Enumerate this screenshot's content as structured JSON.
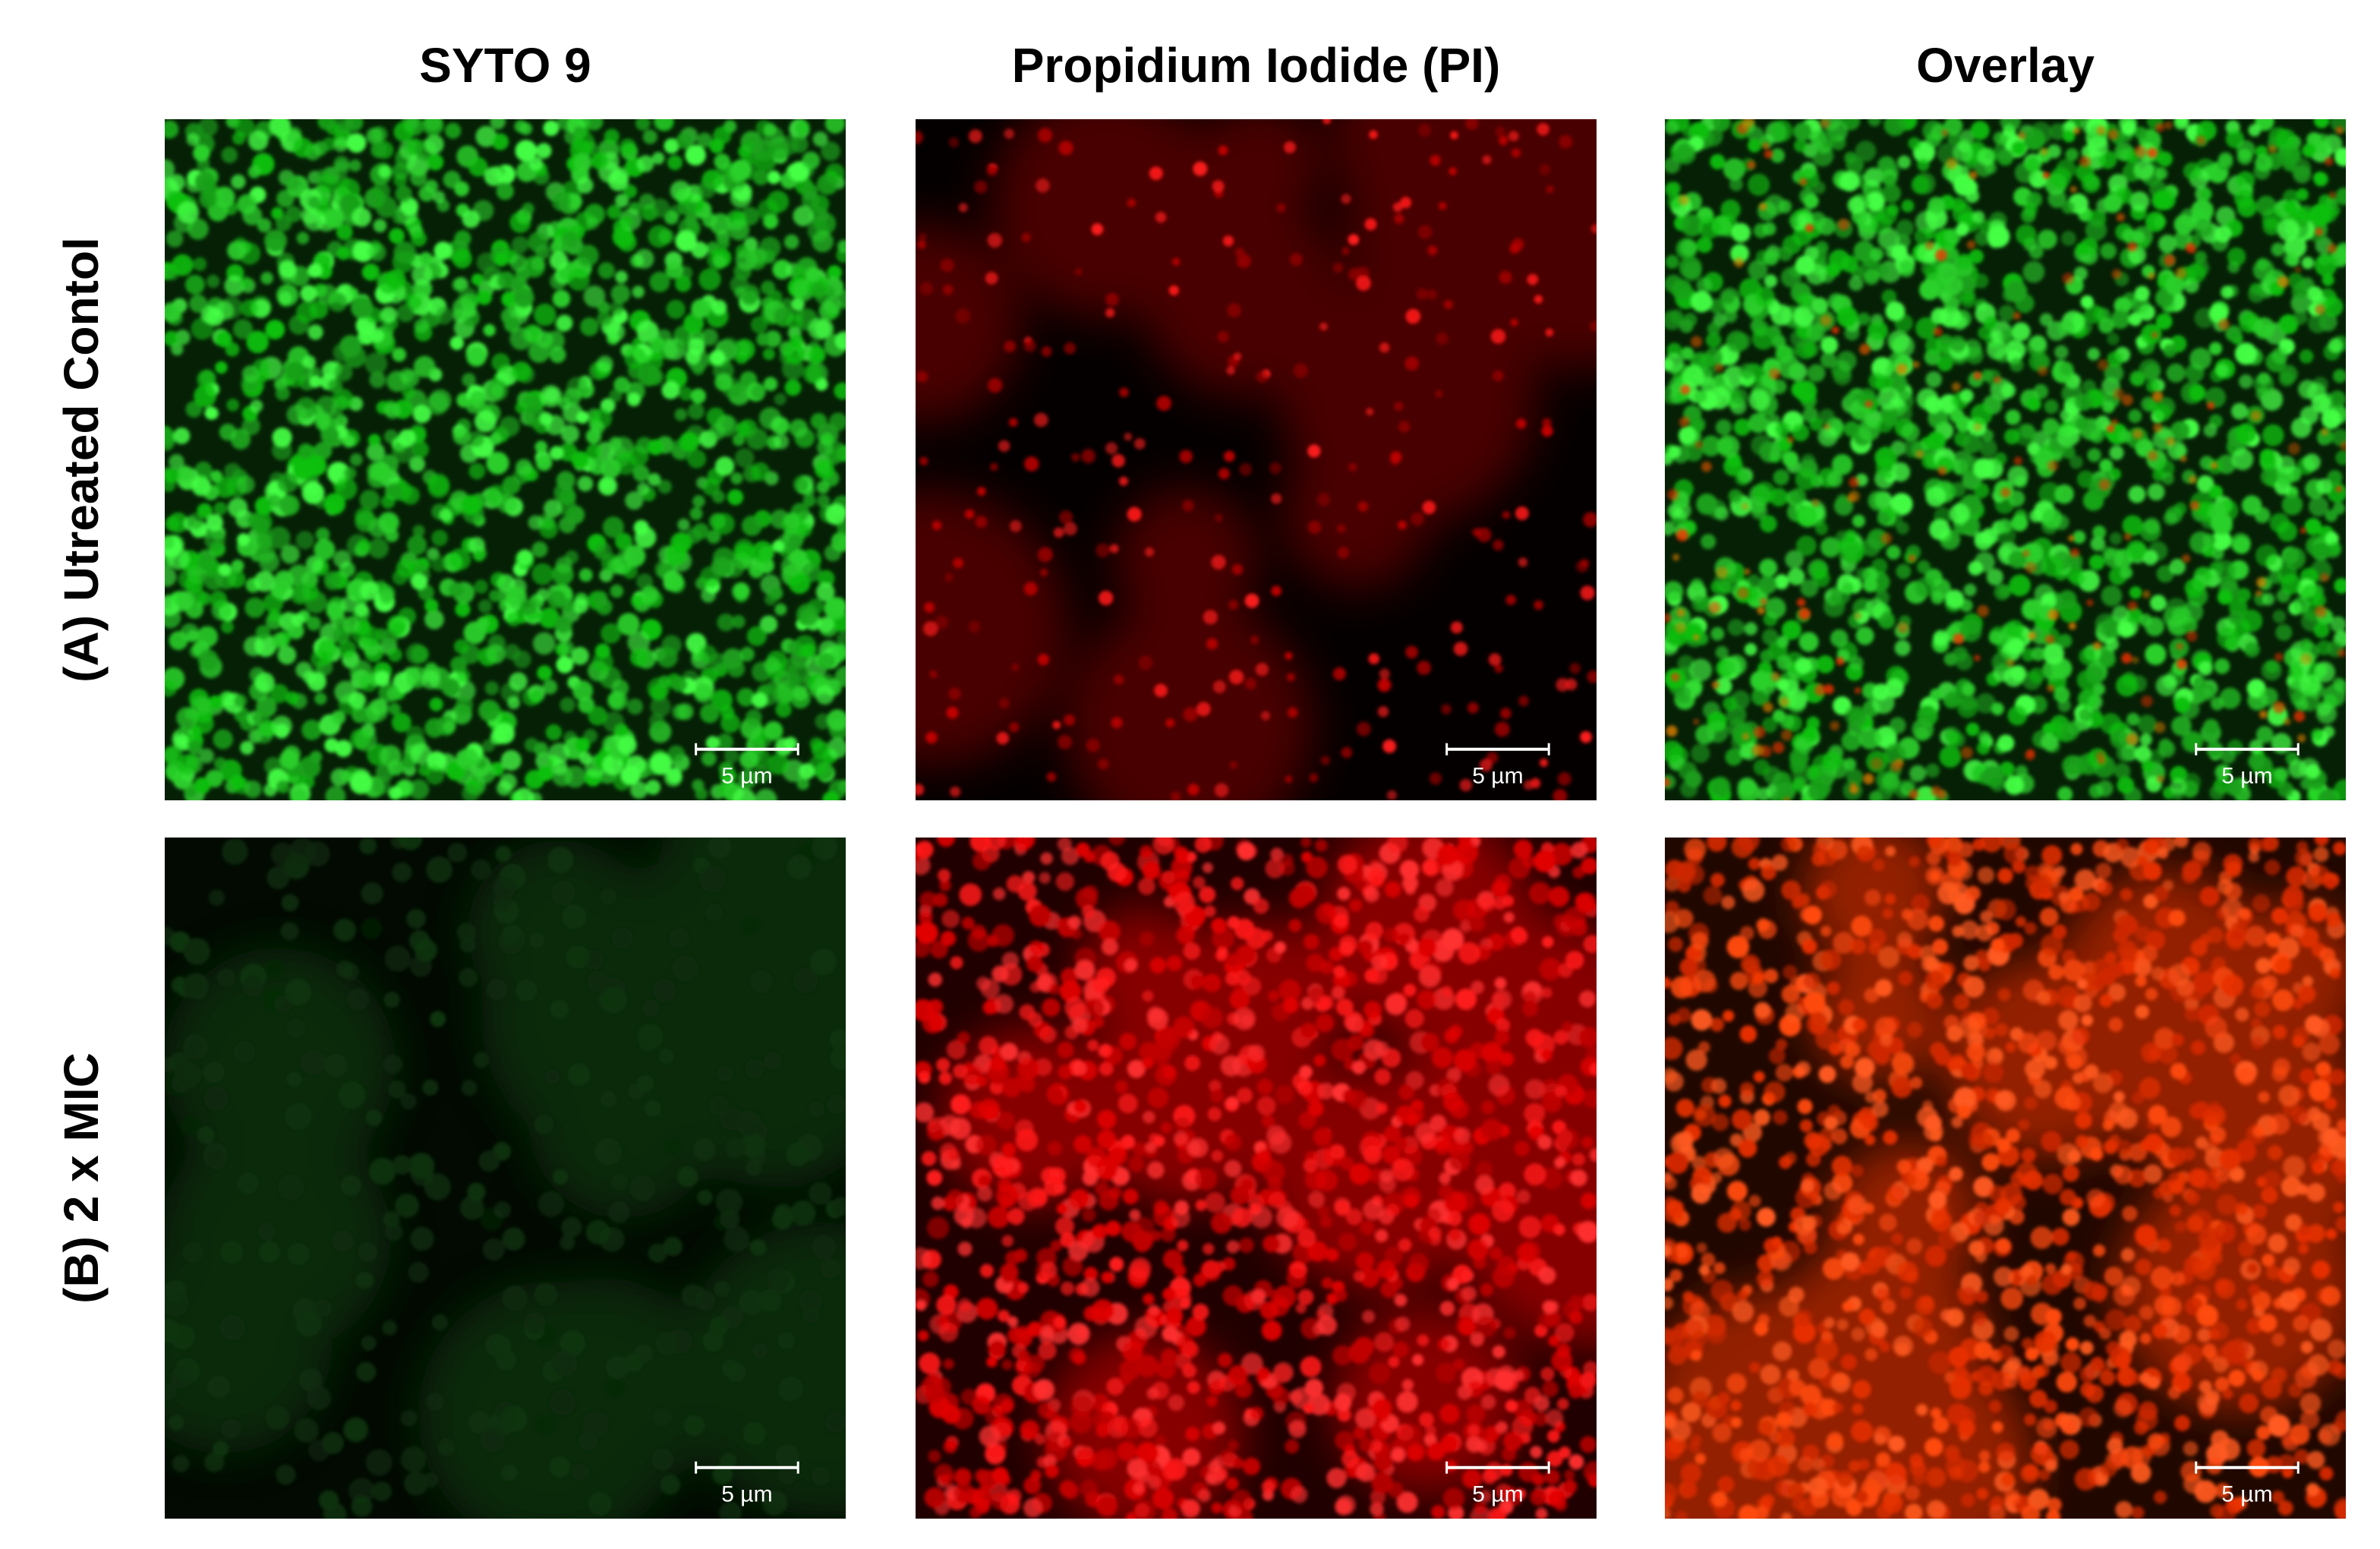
{
  "columns": [
    "SYTO 9",
    "Propidium Iodide (PI)",
    "Overlay"
  ],
  "rows": [
    "(A) Utreated Contol",
    "(B) 2 x MIC"
  ],
  "panels": [
    [
      {
        "scale_bar": "5 µm"
      },
      {
        "scale_bar": "5 µm"
      },
      {
        "scale_bar": "5 µm"
      }
    ],
    [
      {
        "scale_bar": "5 µm"
      },
      {
        "scale_bar": "5 µm"
      },
      {
        "scale_bar": "5 µm"
      }
    ]
  ]
}
